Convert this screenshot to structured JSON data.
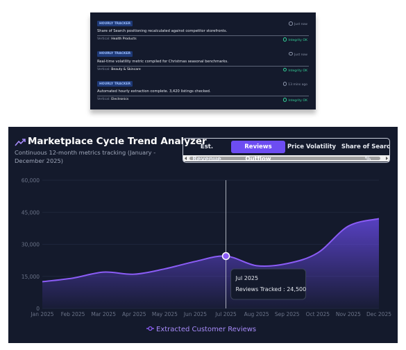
{
  "feed": [
    {
      "badge": "HOURLY TRACKER",
      "time": "Just now",
      "message": "Share of Search positioning recalculated against competitor storefronts.",
      "vertical_label": "Vertical:",
      "vertical_value": "Health Products",
      "status": "Integrity OK"
    },
    {
      "badge": "HOURLY TRACKER",
      "time": "Just now",
      "message": "Real-time volatility metric compiled for Christmas seasonal benchmarks.",
      "vertical_label": "Vertical:",
      "vertical_value": "Beauty & Skincare",
      "status": "Integrity OK"
    },
    {
      "badge": "HOURLY TRACKER",
      "time": "13 mins ago",
      "message": "Automated hourly extraction complete. 3,420 listings checked.",
      "vertical_label": "Vertical:",
      "vertical_value": "Electronics",
      "status": "Integrity OK"
    }
  ],
  "tabs": [
    "Est. Revenue",
    "Reviews Outflow",
    "Price Volatility",
    "Share of Search %"
  ],
  "active_tab": "Reviews Outflow",
  "chart_data": {
    "type": "area",
    "title": "Marketplace Cycle Trend Analyzer",
    "subtitle": "Continuous 12-month metrics tracking (January - December 2025)",
    "categories": [
      "Jan 2025",
      "Feb 2025",
      "Mar 2025",
      "Apr 2025",
      "May 2025",
      "Jun 2025",
      "Jul 2025",
      "Aug 2025",
      "Sep 2025",
      "Oct 2025",
      "Nov 2025",
      "Dec 2025"
    ],
    "series": [
      {
        "name": "Extracted Customer Reviews",
        "color": "#8b5cf6",
        "values": [
          12500,
          14200,
          17000,
          16000,
          18500,
          22000,
          24500,
          20000,
          21000,
          26000,
          38500,
          42000
        ]
      }
    ],
    "ylim": [
      0,
      60000
    ],
    "yticks": [
      0,
      {
        "value": 15000,
        "label": "15,000"
      },
      {
        "value": 30000,
        "label": "30,000"
      },
      {
        "value": 45000,
        "label": "45,000"
      },
      {
        "value": 60000,
        "label": "60,000"
      }
    ],
    "grid": true,
    "legend": "bottom",
    "tooltip": {
      "title": "Jul 2025",
      "text": "Reviews Tracked : 24,500"
    }
  }
}
